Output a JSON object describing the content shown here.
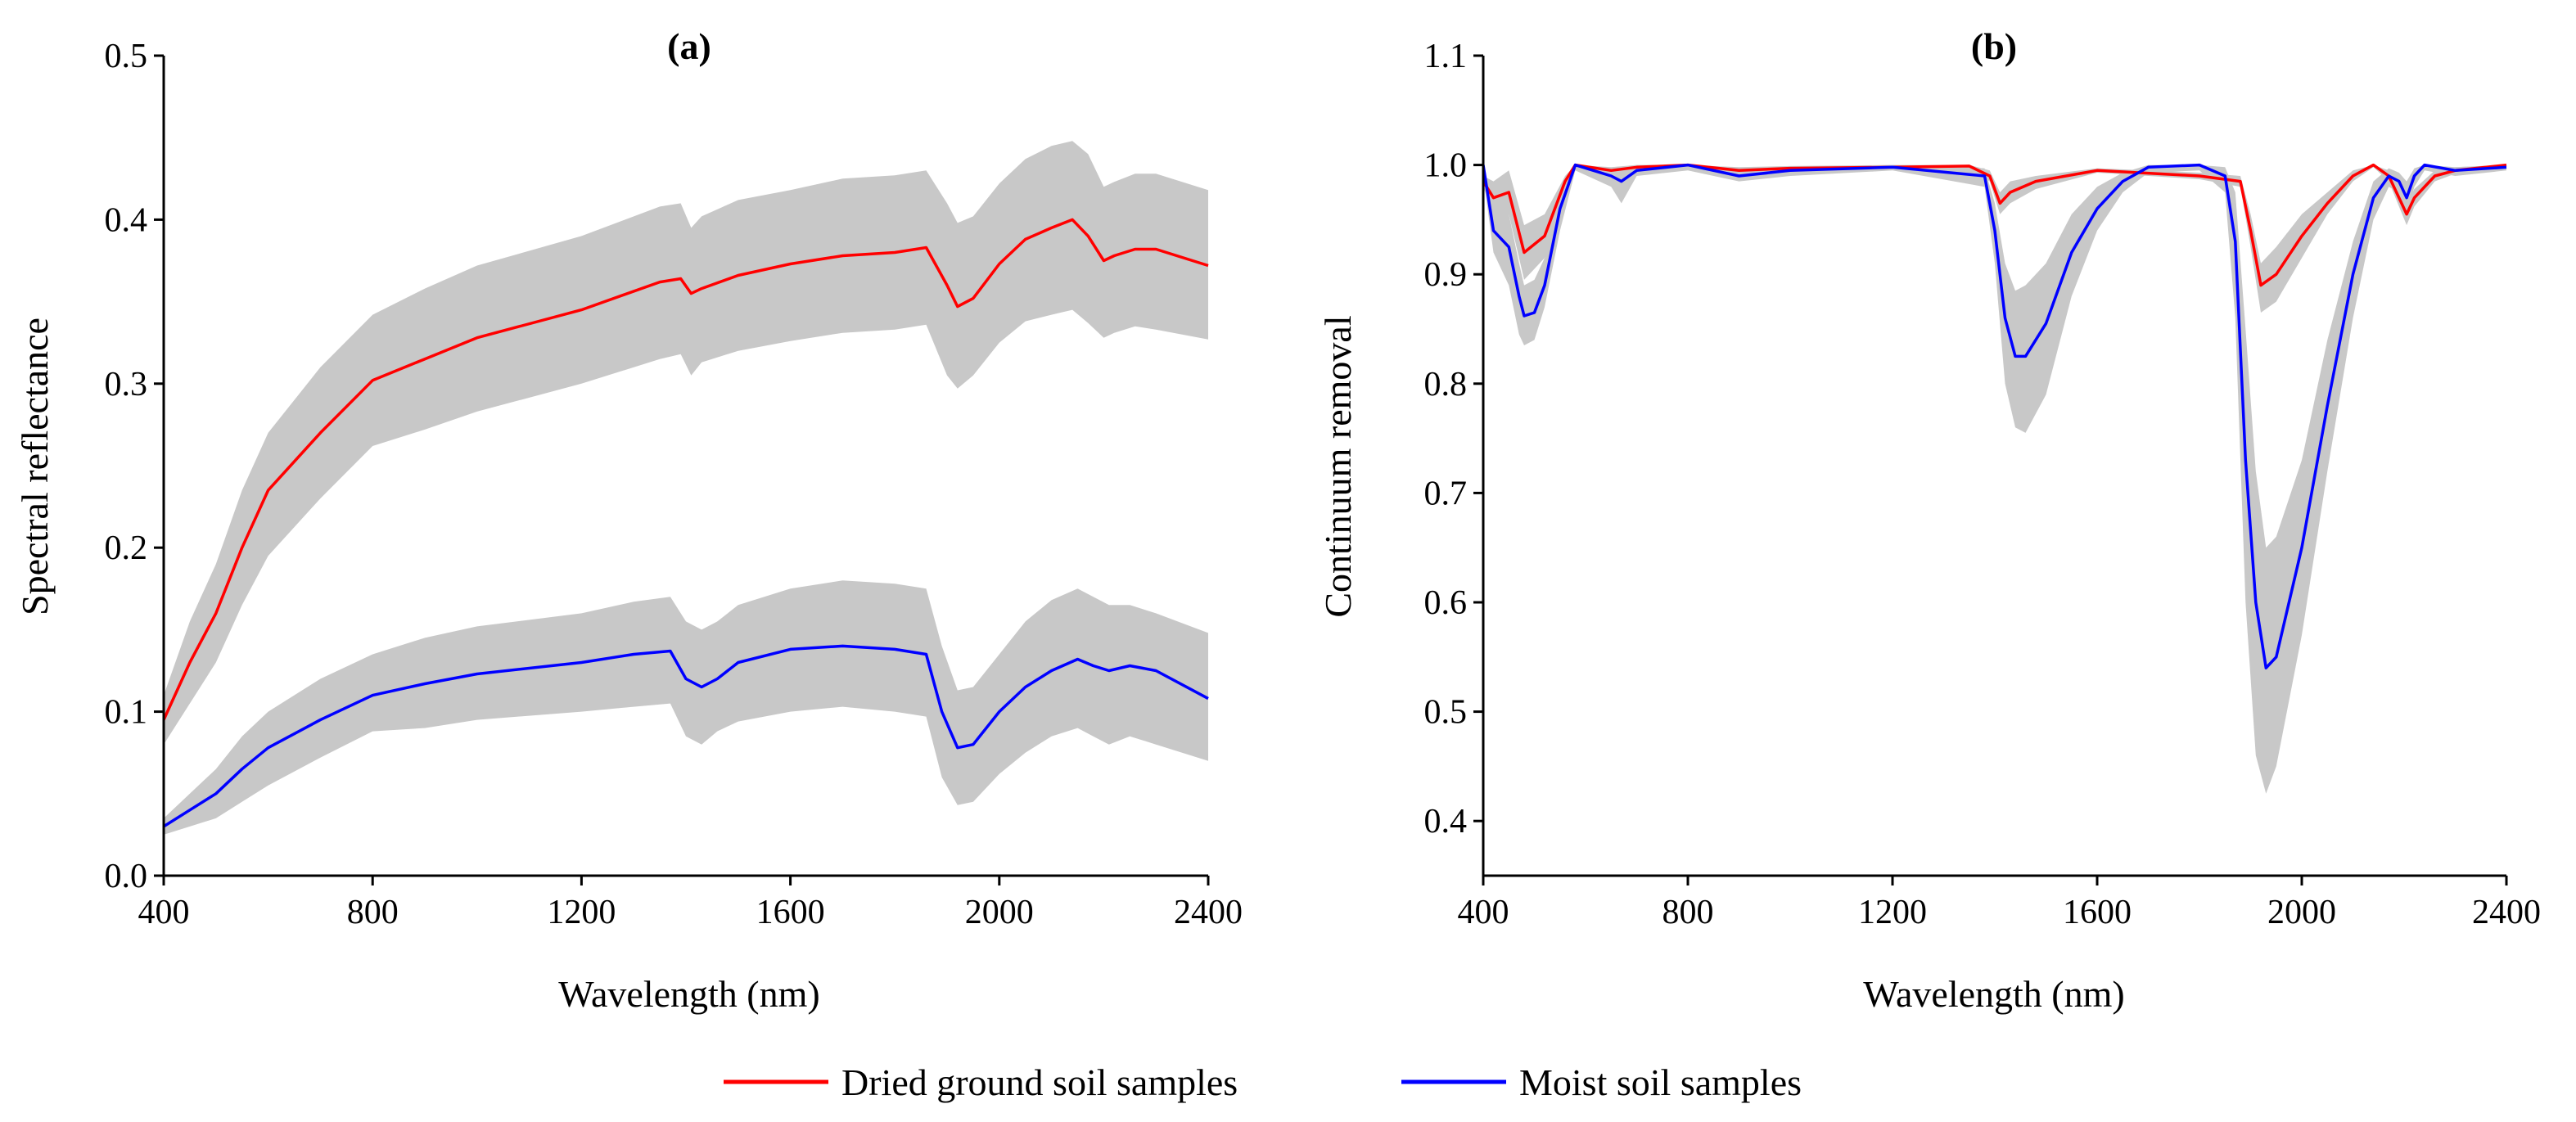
{
  "legend": [
    {
      "label": "Dried ground soil samples",
      "color": "#ff0000"
    },
    {
      "label": "Moist soil samples",
      "color": "#0000ff"
    }
  ],
  "band_color": "#c8c8c8",
  "chart_data": [
    {
      "type": "line",
      "panel_label": "(a)",
      "xlabel": "Wavelength (nm)",
      "ylabel": "Spectral reflectance",
      "xlim": [
        400,
        2400
      ],
      "ylim": [
        0.0,
        0.5
      ],
      "xticks": [
        400,
        800,
        1200,
        1600,
        2000,
        2400
      ],
      "xtick_labels": [
        "400",
        "800",
        "1200",
        "1600",
        "2000",
        "2400"
      ],
      "yticks": [
        0.0,
        0.1,
        0.2,
        0.3,
        0.4,
        0.5
      ],
      "ytick_labels": [
        "0.0",
        "0.1",
        "0.2",
        "0.3",
        "0.4",
        "0.5"
      ],
      "series": [
        {
          "name": "Dried ground soil samples",
          "color": "#ff0000",
          "x": [
            400,
            450,
            500,
            550,
            600,
            700,
            800,
            900,
            1000,
            1200,
            1350,
            1390,
            1410,
            1430,
            1500,
            1600,
            1700,
            1800,
            1860,
            1900,
            1920,
            1950,
            2000,
            2050,
            2100,
            2140,
            2170,
            2200,
            2220,
            2260,
            2300,
            2400
          ],
          "y": [
            0.095,
            0.13,
            0.16,
            0.2,
            0.235,
            0.27,
            0.302,
            0.315,
            0.328,
            0.345,
            0.362,
            0.364,
            0.355,
            0.358,
            0.366,
            0.373,
            0.378,
            0.38,
            0.383,
            0.36,
            0.347,
            0.352,
            0.373,
            0.388,
            0.395,
            0.4,
            0.39,
            0.375,
            0.378,
            0.382,
            0.382,
            0.372
          ],
          "band_low": [
            0.08,
            0.105,
            0.13,
            0.165,
            0.195,
            0.23,
            0.262,
            0.272,
            0.283,
            0.3,
            0.315,
            0.318,
            0.305,
            0.313,
            0.32,
            0.326,
            0.331,
            0.333,
            0.336,
            0.305,
            0.297,
            0.305,
            0.325,
            0.338,
            0.342,
            0.345,
            0.337,
            0.328,
            0.331,
            0.335,
            0.333,
            0.327
          ],
          "band_high": [
            0.11,
            0.155,
            0.19,
            0.235,
            0.27,
            0.31,
            0.342,
            0.358,
            0.372,
            0.39,
            0.408,
            0.41,
            0.395,
            0.402,
            0.412,
            0.418,
            0.425,
            0.427,
            0.43,
            0.41,
            0.398,
            0.402,
            0.422,
            0.437,
            0.445,
            0.448,
            0.44,
            0.42,
            0.423,
            0.428,
            0.428,
            0.418
          ]
        },
        {
          "name": "Moist soil samples",
          "color": "#0000ff",
          "x": [
            400,
            450,
            500,
            550,
            600,
            700,
            800,
            900,
            1000,
            1200,
            1300,
            1370,
            1400,
            1430,
            1460,
            1500,
            1600,
            1700,
            1800,
            1860,
            1890,
            1920,
            1950,
            2000,
            2050,
            2100,
            2150,
            2180,
            2210,
            2250,
            2300,
            2400
          ],
          "y": [
            0.03,
            0.04,
            0.05,
            0.065,
            0.078,
            0.095,
            0.11,
            0.117,
            0.123,
            0.13,
            0.135,
            0.137,
            0.12,
            0.115,
            0.12,
            0.13,
            0.138,
            0.14,
            0.138,
            0.135,
            0.1,
            0.078,
            0.08,
            0.1,
            0.115,
            0.125,
            0.132,
            0.128,
            0.125,
            0.128,
            0.125,
            0.108
          ],
          "band_low": [
            0.025,
            0.03,
            0.035,
            0.045,
            0.055,
            0.072,
            0.088,
            0.09,
            0.095,
            0.1,
            0.103,
            0.105,
            0.085,
            0.08,
            0.088,
            0.094,
            0.1,
            0.103,
            0.1,
            0.097,
            0.06,
            0.043,
            0.045,
            0.062,
            0.075,
            0.085,
            0.09,
            0.085,
            0.08,
            0.085,
            0.08,
            0.07
          ],
          "band_high": [
            0.035,
            0.05,
            0.065,
            0.085,
            0.1,
            0.12,
            0.135,
            0.145,
            0.152,
            0.16,
            0.167,
            0.17,
            0.155,
            0.15,
            0.155,
            0.165,
            0.175,
            0.18,
            0.178,
            0.175,
            0.14,
            0.113,
            0.115,
            0.135,
            0.155,
            0.168,
            0.175,
            0.17,
            0.165,
            0.165,
            0.16,
            0.148
          ]
        }
      ]
    },
    {
      "type": "line",
      "panel_label": "(b)",
      "xlabel": "Wavelength (nm)",
      "ylabel": "Continuum removal",
      "xlim": [
        400,
        2400
      ],
      "ylim": [
        0.35,
        1.1
      ],
      "xticks": [
        400,
        800,
        1200,
        1600,
        2000,
        2400
      ],
      "xtick_labels": [
        "400",
        "800",
        "1200",
        "1600",
        "2000",
        "2400"
      ],
      "yticks": [
        0.4,
        0.5,
        0.6,
        0.7,
        0.8,
        0.9,
        1.0,
        1.1
      ],
      "ytick_labels": [
        "0.4",
        "0.5",
        "0.6",
        "0.7",
        "0.8",
        "0.9",
        "1.0",
        "1.1"
      ],
      "series": [
        {
          "name": "Dried ground soil samples",
          "color": "#ff0000",
          "x": [
            400,
            420,
            450,
            480,
            520,
            560,
            580,
            650,
            700,
            800,
            900,
            1000,
            1200,
            1350,
            1390,
            1410,
            1430,
            1480,
            1600,
            1800,
            1880,
            1900,
            1920,
            1950,
            2000,
            2050,
            2100,
            2140,
            2170,
            2190,
            2205,
            2220,
            2260,
            2300,
            2400
          ],
          "y": [
            0.985,
            0.97,
            0.975,
            0.92,
            0.935,
            0.985,
            1.0,
            0.995,
            0.998,
            1.0,
            0.995,
            0.997,
            0.998,
            0.999,
            0.99,
            0.965,
            0.975,
            0.985,
            0.995,
            0.99,
            0.985,
            0.94,
            0.89,
            0.9,
            0.935,
            0.965,
            0.99,
            1.0,
            0.99,
            0.97,
            0.955,
            0.97,
            0.99,
            0.995,
            1.0
          ],
          "band_low": [
            0.98,
            0.955,
            0.955,
            0.895,
            0.915,
            0.978,
            0.998,
            0.99,
            0.995,
            0.998,
            0.992,
            0.995,
            0.996,
            0.997,
            0.985,
            0.955,
            0.965,
            0.978,
            0.993,
            0.987,
            0.98,
            0.925,
            0.865,
            0.875,
            0.915,
            0.955,
            0.985,
            0.998,
            0.985,
            0.962,
            0.945,
            0.962,
            0.985,
            0.992,
            0.998
          ],
          "band_high": [
            0.99,
            0.985,
            0.995,
            0.945,
            0.955,
            0.99,
            1.0,
            0.998,
            1.0,
            1.0,
            0.998,
            0.999,
            1.0,
            1.0,
            0.995,
            0.975,
            0.985,
            0.99,
            0.997,
            0.993,
            0.99,
            0.955,
            0.91,
            0.925,
            0.955,
            0.975,
            0.995,
            1.0,
            0.995,
            0.978,
            0.965,
            0.978,
            0.995,
            0.998,
            1.0
          ]
        },
        {
          "name": "Moist soil samples",
          "color": "#0000ff",
          "x": [
            400,
            420,
            450,
            470,
            480,
            500,
            520,
            550,
            580,
            650,
            670,
            700,
            800,
            900,
            1000,
            1200,
            1380,
            1400,
            1420,
            1440,
            1460,
            1500,
            1550,
            1600,
            1650,
            1700,
            1800,
            1850,
            1870,
            1890,
            1910,
            1930,
            1950,
            2000,
            2050,
            2100,
            2140,
            2170,
            2190,
            2205,
            2220,
            2240,
            2300,
            2400
          ],
          "y": [
            1.0,
            0.94,
            0.925,
            0.88,
            0.862,
            0.865,
            0.89,
            0.96,
            1.0,
            0.99,
            0.985,
            0.995,
            1.0,
            0.99,
            0.995,
            0.998,
            0.99,
            0.94,
            0.86,
            0.825,
            0.825,
            0.855,
            0.92,
            0.96,
            0.985,
            0.998,
            1.0,
            0.99,
            0.93,
            0.73,
            0.6,
            0.54,
            0.55,
            0.65,
            0.78,
            0.9,
            0.97,
            0.99,
            0.985,
            0.97,
            0.99,
            1.0,
            0.995,
            0.998
          ],
          "band_low": [
            0.99,
            0.92,
            0.89,
            0.845,
            0.835,
            0.84,
            0.87,
            0.94,
            0.995,
            0.98,
            0.965,
            0.99,
            0.995,
            0.985,
            0.99,
            0.995,
            0.98,
            0.91,
            0.8,
            0.76,
            0.755,
            0.79,
            0.88,
            0.94,
            0.975,
            0.993,
            0.995,
            0.975,
            0.86,
            0.6,
            0.46,
            0.425,
            0.45,
            0.57,
            0.72,
            0.86,
            0.95,
            0.98,
            0.975,
            0.955,
            0.98,
            0.995,
            0.99,
            0.995
          ],
          "band_high": [
            1.0,
            0.96,
            0.955,
            0.91,
            0.89,
            0.895,
            0.915,
            0.975,
            1.0,
            0.997,
            0.995,
            1.0,
            1.0,
            0.995,
            0.998,
            1.0,
            0.997,
            0.965,
            0.91,
            0.885,
            0.89,
            0.91,
            0.955,
            0.98,
            0.993,
            1.0,
            1.0,
            0.998,
            0.975,
            0.85,
            0.72,
            0.65,
            0.66,
            0.73,
            0.84,
            0.93,
            0.985,
            0.997,
            0.993,
            0.985,
            0.997,
            1.0,
            0.998,
            1.0
          ]
        }
      ]
    }
  ]
}
